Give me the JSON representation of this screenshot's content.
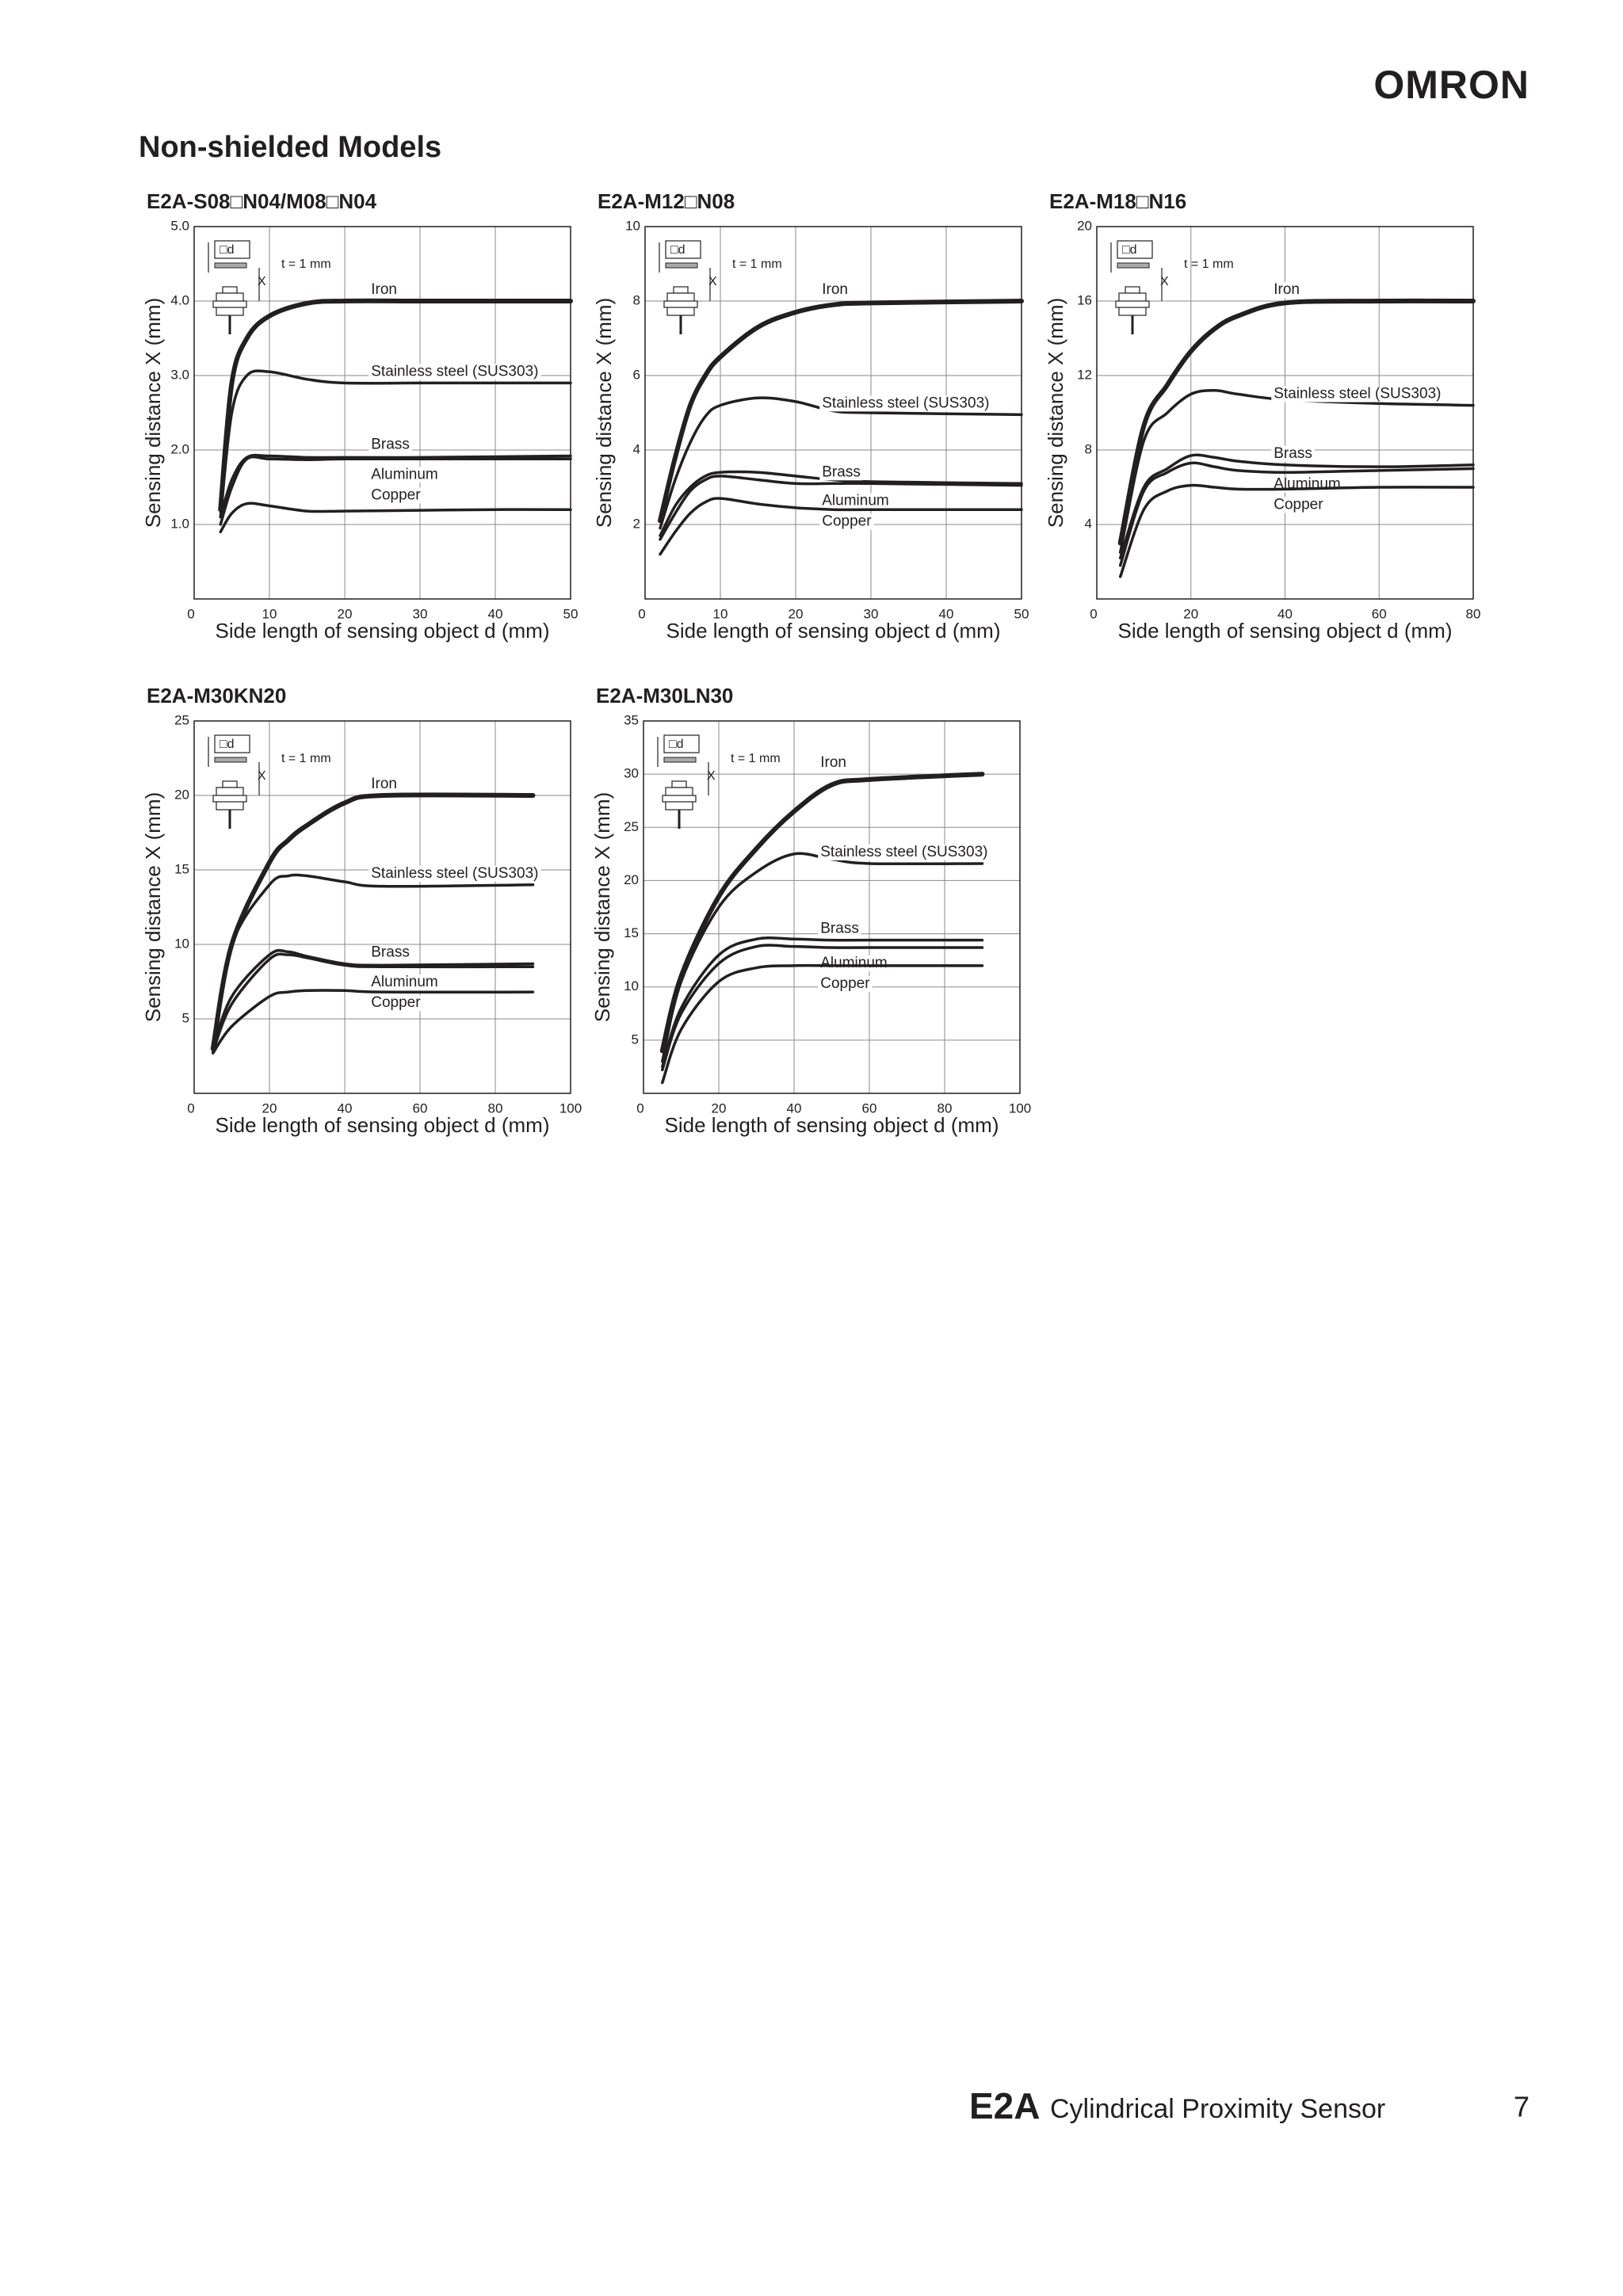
{
  "header": {
    "brand": "OMRON"
  },
  "section_title": "Non-shielded Models",
  "chart_data": [
    {
      "type": "line",
      "title": "E2A-S08□N04/M08□N04",
      "xlabel": "Side length of sensing object d (mm)",
      "ylabel": "Sensing distance X (mm)",
      "annotations": [
        "□d",
        "X",
        "t = 1 mm"
      ],
      "x": [
        3.5,
        5,
        7,
        10,
        15,
        20,
        30,
        40,
        50
      ],
      "series": [
        {
          "name": "Iron",
          "color": "#231f20",
          "values": [
            1.2,
            2.9,
            3.5,
            3.8,
            3.97,
            4.0,
            4.0,
            4.0,
            4.0
          ]
        },
        {
          "name": "Stainless steel (SUS303)",
          "color": "#231f20",
          "values": [
            1.1,
            2.5,
            3.0,
            3.05,
            2.95,
            2.9,
            2.9,
            2.9,
            2.9
          ]
        },
        {
          "name": "Brass",
          "color": "#231f20",
          "values": [
            1.1,
            1.6,
            1.9,
            1.92,
            1.9,
            1.9,
            1.9,
            1.91,
            1.92
          ]
        },
        {
          "name": "Aluminum",
          "color": "#231f20",
          "values": [
            1.0,
            1.5,
            1.88,
            1.88,
            1.87,
            1.88,
            1.88,
            1.88,
            1.88
          ]
        },
        {
          "name": "Copper",
          "color": "#231f20",
          "values": [
            0.9,
            1.15,
            1.28,
            1.25,
            1.18,
            1.18,
            1.19,
            1.2,
            1.2
          ]
        }
      ],
      "xlim": [
        0,
        50
      ],
      "ylim": [
        0,
        5
      ],
      "xticks": [
        0,
        10,
        20,
        30,
        40,
        50
      ],
      "yticks": [
        {
          "value": 1,
          "label": "1.0"
        },
        {
          "value": 2,
          "label": "2.0"
        },
        {
          "value": 3,
          "label": "3.0"
        },
        {
          "value": 4,
          "label": "4.0"
        },
        {
          "value": 5,
          "label": "5.0"
        }
      ],
      "grid": true
    },
    {
      "type": "line",
      "title": "E2A-M12□N08",
      "xlabel": "Side length of sensing object d (mm)",
      "ylabel": "Sensing distance X (mm)",
      "annotations": [
        "□d",
        "X",
        "t = 1 mm"
      ],
      "x": [
        2,
        4,
        6,
        8,
        10,
        15,
        20,
        25,
        30,
        50
      ],
      "series": [
        {
          "name": "Iron",
          "color": "#231f20",
          "values": [
            2.1,
            3.8,
            5.2,
            6.0,
            6.5,
            7.3,
            7.7,
            7.9,
            7.95,
            8.0
          ]
        },
        {
          "name": "Stainless steel (SUS303)",
          "color": "#231f20",
          "values": [
            1.9,
            3.2,
            4.2,
            4.9,
            5.2,
            5.4,
            5.3,
            5.05,
            5.0,
            4.95
          ]
        },
        {
          "name": "Brass",
          "color": "#231f20",
          "values": [
            1.7,
            2.5,
            3.0,
            3.3,
            3.4,
            3.4,
            3.3,
            3.2,
            3.15,
            3.1
          ]
        },
        {
          "name": "Aluminum",
          "color": "#231f20",
          "values": [
            1.6,
            2.3,
            2.9,
            3.2,
            3.3,
            3.2,
            3.1,
            3.1,
            3.1,
            3.05
          ]
        },
        {
          "name": "Copper",
          "color": "#231f20",
          "values": [
            1.2,
            1.8,
            2.3,
            2.6,
            2.7,
            2.55,
            2.45,
            2.4,
            2.4,
            2.4
          ]
        }
      ],
      "xlim": [
        0,
        50
      ],
      "ylim": [
        0,
        10
      ],
      "xticks": [
        0,
        10,
        20,
        30,
        40,
        50
      ],
      "yticks": [
        2,
        4,
        6,
        8,
        10
      ],
      "grid": true
    },
    {
      "type": "line",
      "title": "E2A-M18□N16",
      "xlabel": "Side length of sensing object d (mm)",
      "ylabel": "Sensing distance X (mm)",
      "annotations": [
        "□d",
        "X",
        "t = 1 mm"
      ],
      "x": [
        5,
        10,
        15,
        20,
        25,
        30,
        40,
        60,
        80
      ],
      "series": [
        {
          "name": "Iron",
          "color": "#231f20",
          "values": [
            3,
            9.3,
            11.5,
            13.3,
            14.5,
            15.2,
            15.9,
            16,
            16
          ]
        },
        {
          "name": "Stainless steel (SUS303)",
          "color": "#231f20",
          "values": [
            2.5,
            8.5,
            10,
            11,
            11.2,
            11,
            10.7,
            10.5,
            10.4
          ]
        },
        {
          "name": "Brass",
          "color": "#231f20",
          "values": [
            2.2,
            6,
            7,
            7.7,
            7.6,
            7.4,
            7.2,
            7.1,
            7.2
          ]
        },
        {
          "name": "Aluminum",
          "color": "#231f20",
          "values": [
            1.8,
            5.8,
            6.8,
            7.3,
            7.1,
            6.9,
            6.8,
            6.9,
            7.0
          ]
        },
        {
          "name": "Copper",
          "color": "#231f20",
          "values": [
            1.2,
            4.8,
            5.8,
            6.1,
            6.0,
            5.9,
            5.9,
            6,
            6
          ]
        }
      ],
      "xlim": [
        0,
        80
      ],
      "ylim": [
        0,
        20
      ],
      "xticks": [
        0,
        20,
        40,
        60,
        80
      ],
      "yticks": [
        4,
        8,
        12,
        16,
        20
      ],
      "grid": true
    },
    {
      "type": "line",
      "title": "E2A-M30KN20",
      "xlabel": "Side length of sensing object d (mm)",
      "ylabel": "Sensing distance X (mm)",
      "annotations": [
        "□d",
        "X",
        "t = 1 mm"
      ],
      "x": [
        5,
        10,
        20,
        25,
        30,
        40,
        50,
        90
      ],
      "series": [
        {
          "name": "Iron",
          "color": "#231f20",
          "values": [
            3,
            10,
            15.5,
            17,
            18,
            19.5,
            20,
            20
          ]
        },
        {
          "name": "Stainless steel (SUS303)",
          "color": "#231f20",
          "values": [
            3,
            10,
            14,
            14.6,
            14.6,
            14.2,
            13.9,
            14
          ]
        },
        {
          "name": "Brass",
          "color": "#231f20",
          "values": [
            3,
            6.5,
            9.3,
            9.5,
            9.2,
            8.7,
            8.6,
            8.7
          ]
        },
        {
          "name": "Aluminum",
          "color": "#231f20",
          "values": [
            2.8,
            6,
            9,
            9.3,
            9.1,
            8.6,
            8.5,
            8.5
          ]
        },
        {
          "name": "Copper",
          "color": "#231f20",
          "values": [
            2.7,
            4.5,
            6.5,
            6.8,
            6.9,
            6.9,
            6.8,
            6.8
          ]
        }
      ],
      "xlim": [
        0,
        100
      ],
      "ylim": [
        0,
        25
      ],
      "xticks": [
        0,
        20,
        40,
        60,
        80,
        100
      ],
      "yticks": [
        5,
        10,
        15,
        20,
        25
      ],
      "grid": true
    },
    {
      "type": "line",
      "title": "E2A-M30LN30",
      "xlabel": "Side length of sensing object d (mm)",
      "ylabel": "Sensing distance X (mm)",
      "annotations": [
        "□d",
        "X",
        "t = 1 mm"
      ],
      "x": [
        5,
        10,
        20,
        30,
        40,
        50,
        60,
        90
      ],
      "series": [
        {
          "name": "Iron",
          "color": "#231f20",
          "values": [
            4,
            11,
            18.5,
            23,
            26.5,
            29,
            29.5,
            30
          ]
        },
        {
          "name": "Stainless steel (SUS303)",
          "color": "#231f20",
          "values": [
            3,
            10.5,
            17.5,
            20.8,
            22.5,
            22,
            21.6,
            21.6
          ]
        },
        {
          "name": "Brass",
          "color": "#231f20",
          "values": [
            2.5,
            8,
            13,
            14.5,
            14.5,
            14.4,
            14.4,
            14.4
          ]
        },
        {
          "name": "Aluminum",
          "color": "#231f20",
          "values": [
            2.2,
            7.5,
            12.2,
            13.8,
            13.8,
            13.7,
            13.7,
            13.7
          ]
        },
        {
          "name": "Copper",
          "color": "#231f20",
          "values": [
            1,
            6,
            10.5,
            11.8,
            12,
            12,
            12,
            12
          ]
        }
      ],
      "xlim": [
        0,
        100
      ],
      "ylim": [
        0,
        35
      ],
      "xticks": [
        0,
        20,
        40,
        60,
        80,
        100
      ],
      "yticks": [
        5,
        10,
        15,
        20,
        25,
        30,
        35
      ],
      "grid": true
    }
  ],
  "footer": {
    "product": "E2A",
    "description": "Cylindrical Proximity Sensor",
    "page": "7"
  }
}
